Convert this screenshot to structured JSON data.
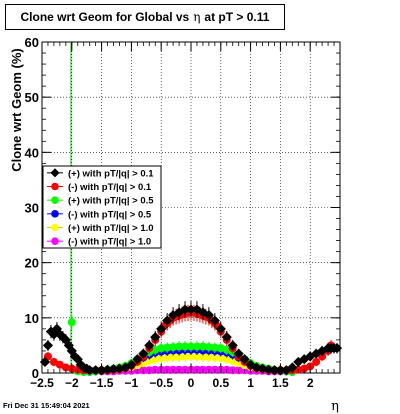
{
  "chart_data": {
    "type": "scatter",
    "title_prefix": "Clone wrt Geom for Global vs",
    "title_symbol": "η",
    "title_suffix": "at pT > 0.11",
    "xlabel": "η",
    "ylabel": "Clone wrt Geom (%)",
    "xlim": [
      -2.5,
      2.5
    ],
    "ylim": [
      0,
      60
    ],
    "x_ticks": [
      -2.5,
      -2,
      -1.5,
      -1,
      -0.5,
      0,
      0.5,
      1,
      1.5,
      2
    ],
    "x_tick_labels": [
      "−2.5",
      "−2",
      "−1.5",
      "−1",
      "−0.5",
      "0",
      "0.5",
      "1",
      "1.5",
      "2"
    ],
    "y_ticks": [
      0,
      10,
      20,
      30,
      40,
      50,
      60
    ],
    "y_tick_labels": [
      "0",
      "10",
      "20",
      "30",
      "40",
      "50",
      "60"
    ],
    "grid": true,
    "legend_position": "center-left",
    "date": "Fri Dec 31 15:49:04 2021",
    "series": [
      {
        "name": "(+) with pT/|q| > 0.1",
        "color": "#000000",
        "x": [
          -2.45,
          -2.4,
          -2.35,
          -2.3,
          -2.25,
          -2.2,
          -2.15,
          -2.1,
          -2.05,
          -2.0,
          -1.95,
          -1.9,
          -1.85,
          -1.8,
          -1.75,
          -1.7,
          -1.6,
          -1.5,
          -1.4,
          -1.3,
          -1.2,
          -1.1,
          -1.0,
          -0.9,
          -0.8,
          -0.7,
          -0.6,
          -0.5,
          -0.4,
          -0.3,
          -0.2,
          -0.1,
          0.0,
          0.1,
          0.2,
          0.3,
          0.4,
          0.5,
          0.6,
          0.7,
          0.8,
          0.9,
          1.0,
          1.1,
          1.2,
          1.3,
          1.4,
          1.5,
          1.6,
          1.7,
          1.8,
          1.9,
          2.0,
          2.1,
          2.2,
          2.3,
          2.35,
          2.4,
          2.45
        ],
        "y": [
          2,
          5,
          7.5,
          7,
          8,
          7,
          6.5,
          6,
          5,
          4,
          3,
          2.5,
          1.5,
          1,
          0.8,
          0.5,
          0.5,
          0.5,
          0.6,
          0.7,
          0.8,
          1,
          1.5,
          2.5,
          3.5,
          5,
          6.5,
          8,
          9.5,
          10.5,
          11,
          11.5,
          11.5,
          11.5,
          11,
          10.5,
          9.5,
          8,
          6.5,
          5,
          3.5,
          2.5,
          1.5,
          1,
          0.8,
          0.6,
          0.5,
          0.5,
          0.5,
          1,
          2,
          2.5,
          3,
          3.5,
          4,
          4.5,
          4.5,
          4.5,
          4.5
        ]
      },
      {
        "name": "(-) with pT/|q| > 0.1",
        "color": "#ff0000",
        "x": [
          -2.4,
          -2.3,
          -2.2,
          -2.1,
          -2.0,
          -1.9,
          -1.8,
          -1.7,
          -1.6,
          -1.5,
          -1.4,
          -1.3,
          -1.2,
          -1.1,
          -1.0,
          -0.9,
          -0.8,
          -0.7,
          -0.6,
          -0.5,
          -0.45,
          -0.4,
          -0.35,
          -0.3,
          -0.25,
          -0.2,
          -0.15,
          -0.1,
          -0.05,
          0.0,
          0.05,
          0.1,
          0.15,
          0.2,
          0.25,
          0.3,
          0.35,
          0.4,
          0.45,
          0.5,
          0.6,
          0.7,
          0.8,
          0.9,
          1.0,
          1.1,
          1.2,
          1.3,
          1.4,
          1.5,
          1.6,
          1.7,
          1.8,
          1.9,
          2.0,
          2.1,
          2.2,
          2.3,
          2.35
        ],
        "y": [
          3,
          2,
          1.5,
          1,
          0.8,
          0.6,
          0.5,
          0.5,
          0.5,
          0.5,
          0.5,
          0.6,
          0.7,
          0.9,
          1.3,
          2,
          3,
          4.5,
          6,
          7.5,
          8.5,
          9,
          9.5,
          10,
          10.2,
          10.4,
          10.6,
          10.8,
          10.9,
          11,
          10.9,
          10.8,
          10.6,
          10.4,
          10.2,
          10,
          9.5,
          9,
          8.5,
          7.5,
          6,
          4.5,
          3,
          2,
          1.3,
          0.9,
          0.7,
          0.6,
          0.5,
          0.5,
          0.5,
          0.5,
          0.6,
          0.8,
          1.2,
          2,
          3,
          4,
          5
        ]
      },
      {
        "name": "(+) with pT/|q| > 0.5",
        "color": "#00ff00",
        "x": [
          -2.0,
          -1.9,
          -1.8,
          -1.7,
          -1.6,
          -1.5,
          -1.4,
          -1.3,
          -1.2,
          -1.1,
          -1.0,
          -0.9,
          -0.8,
          -0.7,
          -0.6,
          -0.5,
          -0.4,
          -0.3,
          -0.2,
          -0.1,
          0.0,
          0.1,
          0.2,
          0.3,
          0.4,
          0.5,
          0.6,
          0.7,
          0.8,
          0.9,
          1.0,
          1.1,
          1.2,
          1.3,
          1.4,
          1.5,
          1.6,
          1.7
        ],
        "y": [
          9.2,
          0.3,
          0.2,
          0.2,
          0.3,
          0.5,
          0.6,
          0.8,
          1,
          1.3,
          1.8,
          2.5,
          3.2,
          3.8,
          4.2,
          4.5,
          4.6,
          4.7,
          4.8,
          4.8,
          4.8,
          4.8,
          4.8,
          4.7,
          4.6,
          4.5,
          4.2,
          3.8,
          3.2,
          2.5,
          1.8,
          1.3,
          1,
          0.8,
          0.6,
          0.5,
          0.3,
          0.2
        ]
      },
      {
        "name": "(-) with pT/|q| > 0.5",
        "color": "#0000ff",
        "x": [
          -1.8,
          -1.7,
          -1.6,
          -1.5,
          -1.4,
          -1.3,
          -1.2,
          -1.1,
          -1.0,
          -0.9,
          -0.8,
          -0.7,
          -0.6,
          -0.5,
          -0.4,
          -0.3,
          -0.2,
          -0.1,
          0.0,
          0.1,
          0.2,
          0.3,
          0.4,
          0.5,
          0.6,
          0.7,
          0.8,
          0.9,
          1.0,
          1.1,
          1.2,
          1.3,
          1.4,
          1.5,
          1.6,
          1.7
        ],
        "y": [
          0.2,
          0.2,
          0.3,
          0.4,
          0.5,
          0.7,
          0.9,
          1.2,
          1.6,
          2.2,
          2.8,
          3.3,
          3.7,
          3.9,
          4,
          4.1,
          4.1,
          4.2,
          4.2,
          4.2,
          4.1,
          4.1,
          4,
          3.9,
          3.7,
          3.3,
          2.8,
          2.2,
          1.6,
          1.2,
          0.9,
          0.7,
          0.5,
          0.4,
          0.3,
          0.2
        ]
      },
      {
        "name": "(+) with pT/|q| > 1.0",
        "color": "#ffff00",
        "x": [
          -1.7,
          -1.6,
          -1.5,
          -1.4,
          -1.3,
          -1.2,
          -1.1,
          -1.0,
          -0.9,
          -0.8,
          -0.7,
          -0.6,
          -0.5,
          -0.4,
          -0.3,
          -0.2,
          -0.1,
          0.0,
          0.1,
          0.2,
          0.3,
          0.4,
          0.5,
          0.6,
          0.7,
          0.8,
          0.9,
          1.0,
          1.1,
          1.2,
          1.3,
          1.4,
          1.5,
          1.6,
          1.7
        ],
        "y": [
          0.3,
          0.3,
          0.4,
          0.5,
          0.6,
          0.7,
          0.9,
          1.1,
          1.4,
          1.8,
          2.2,
          2.5,
          2.7,
          2.8,
          2.9,
          2.9,
          3,
          3,
          3,
          2.9,
          2.9,
          2.8,
          2.7,
          2.5,
          2.2,
          1.8,
          1.4,
          1.1,
          0.9,
          0.7,
          0.6,
          0.5,
          0.4,
          0.3,
          0.3
        ]
      },
      {
        "name": "(-) with pT/|q| > 1.0",
        "color": "#ff00ff",
        "x": [
          -1.7,
          -1.6,
          -1.5,
          -1.4,
          -1.3,
          -1.2,
          -1.1,
          -1.0,
          -0.9,
          -0.8,
          -0.7,
          -0.6,
          -0.5,
          -0.4,
          -0.3,
          -0.2,
          -0.1,
          0.0,
          0.1,
          0.2,
          0.3,
          0.4,
          0.5,
          0.6,
          0.7,
          0.8,
          0.9,
          1.0,
          1.1,
          1.2,
          1.3,
          1.4,
          1.5,
          1.6,
          1.7
        ],
        "y": [
          0.3,
          0.3,
          0.3,
          0.3,
          0.3,
          0.4,
          0.4,
          0.4,
          0.5,
          0.5,
          0.5,
          0.6,
          0.6,
          0.6,
          0.6,
          0.6,
          0.6,
          0.6,
          0.6,
          0.6,
          0.6,
          0.6,
          0.6,
          0.6,
          0.5,
          0.5,
          0.5,
          0.4,
          0.4,
          0.4,
          0.3,
          0.3,
          0.3,
          0.3,
          0.3
        ]
      }
    ]
  }
}
